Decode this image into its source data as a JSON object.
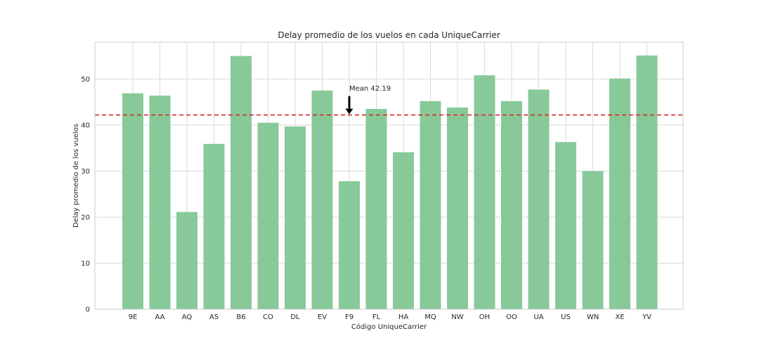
{
  "chart_data": {
    "type": "bar",
    "title": "Delay promedio de los vuelos en cada UniqueCarrier",
    "xlabel": "Código UniqueCarrier",
    "ylabel": "Delay promedio de los vuelos",
    "categories": [
      "9E",
      "AA",
      "AQ",
      "AS",
      "B6",
      "CO",
      "DL",
      "EV",
      "F9",
      "FL",
      "HA",
      "MQ",
      "NW",
      "OH",
      "OO",
      "UA",
      "US",
      "WN",
      "XE",
      "YV"
    ],
    "values": [
      46.9,
      46.4,
      21.1,
      35.9,
      55.0,
      40.5,
      39.7,
      47.5,
      27.8,
      43.5,
      34.1,
      45.2,
      43.8,
      50.8,
      45.2,
      47.7,
      36.3,
      30.0,
      50.1,
      55.1
    ],
    "ylim": [
      0,
      58
    ],
    "yticks": [
      0,
      10,
      20,
      30,
      40,
      50
    ],
    "bar_color": "#88c999",
    "grid": true,
    "reference_line": {
      "value": 42.19,
      "color": "#d62728",
      "style": "dashed"
    },
    "annotation": {
      "text": "Mean 42.19",
      "x_category": "F9",
      "y_text": 47.5,
      "y_arrow_tip": 42.19
    }
  }
}
